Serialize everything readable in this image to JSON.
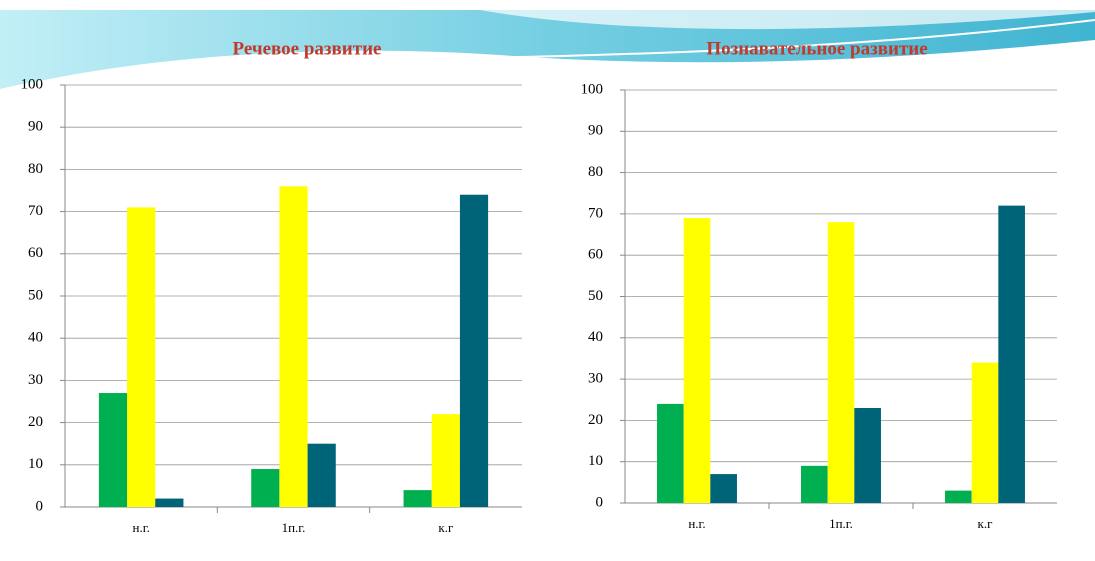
{
  "chart_data": [
    {
      "type": "bar",
      "title": "Речевое развитие",
      "categories": [
        "н.г.",
        "1п.г.",
        "к.г"
      ],
      "series": [
        {
          "color": "#00b050",
          "values": [
            27,
            9,
            4
          ]
        },
        {
          "color": "#ffff00",
          "values": [
            71,
            76,
            22
          ]
        },
        {
          "color": "#006478",
          "values": [
            2,
            15,
            74
          ]
        }
      ],
      "ylim": [
        0,
        100
      ],
      "yticks": [
        0,
        10,
        20,
        30,
        40,
        50,
        60,
        70,
        80,
        90,
        100
      ],
      "grid": true
    },
    {
      "type": "bar",
      "title": "Познавательное  развитие",
      "categories": [
        "н.г.",
        "1п.г.",
        "к.г"
      ],
      "series": [
        {
          "color": "#00b050",
          "values": [
            24,
            9,
            3
          ]
        },
        {
          "color": "#ffff00",
          "values": [
            69,
            68,
            34
          ]
        },
        {
          "color": "#006478",
          "values": [
            7,
            23,
            72
          ]
        }
      ],
      "ylim": [
        0,
        100
      ],
      "yticks": [
        0,
        10,
        20,
        30,
        40,
        50,
        60,
        70,
        80,
        90,
        100
      ],
      "grid": true
    }
  ]
}
